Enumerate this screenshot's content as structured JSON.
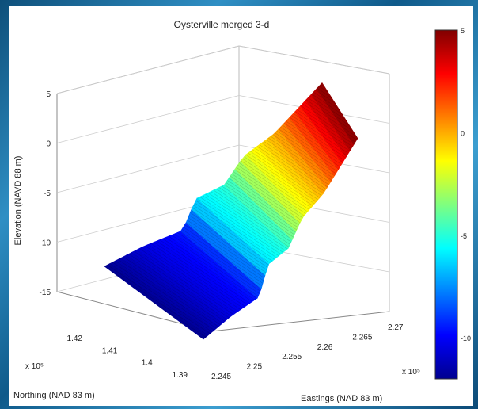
{
  "chart_data": {
    "type": "surface-3d",
    "title": "Oysterville merged 3-d",
    "zlabel": "Elevation (NAVD 88 m)",
    "ylabel": "Northing (NAD 83 m)",
    "xlabel": "Eastings (NAD 83 m)",
    "x_multiplier": "x 10⁵",
    "y_multiplier": "x 10⁵",
    "zlim": [
      -15,
      5
    ],
    "z_ticks": [
      "5",
      "0",
      "-5",
      "-10",
      "-15"
    ],
    "northing_ticks": [
      "1.42",
      "1.41",
      "1.4",
      "1.39"
    ],
    "easting_ticks": [
      "2.245",
      "2.25",
      "2.255",
      "2.26",
      "2.265",
      "2.27"
    ],
    "colorbar": {
      "range": [
        -12,
        5
      ],
      "ticks": [
        "5",
        "0",
        "-5",
        "-10"
      ],
      "colormap": "jet"
    },
    "surface_profile": [
      {
        "position": 0.0,
        "elevation": -12
      },
      {
        "position": 0.18,
        "elevation": -10.5
      },
      {
        "position": 0.36,
        "elevation": -9.5
      },
      {
        "position": 0.42,
        "elevation": -6
      },
      {
        "position": 0.55,
        "elevation": -5
      },
      {
        "position": 0.64,
        "elevation": -2
      },
      {
        "position": 0.78,
        "elevation": 0
      },
      {
        "position": 1.0,
        "elevation": 5
      }
    ],
    "grid": true
  }
}
